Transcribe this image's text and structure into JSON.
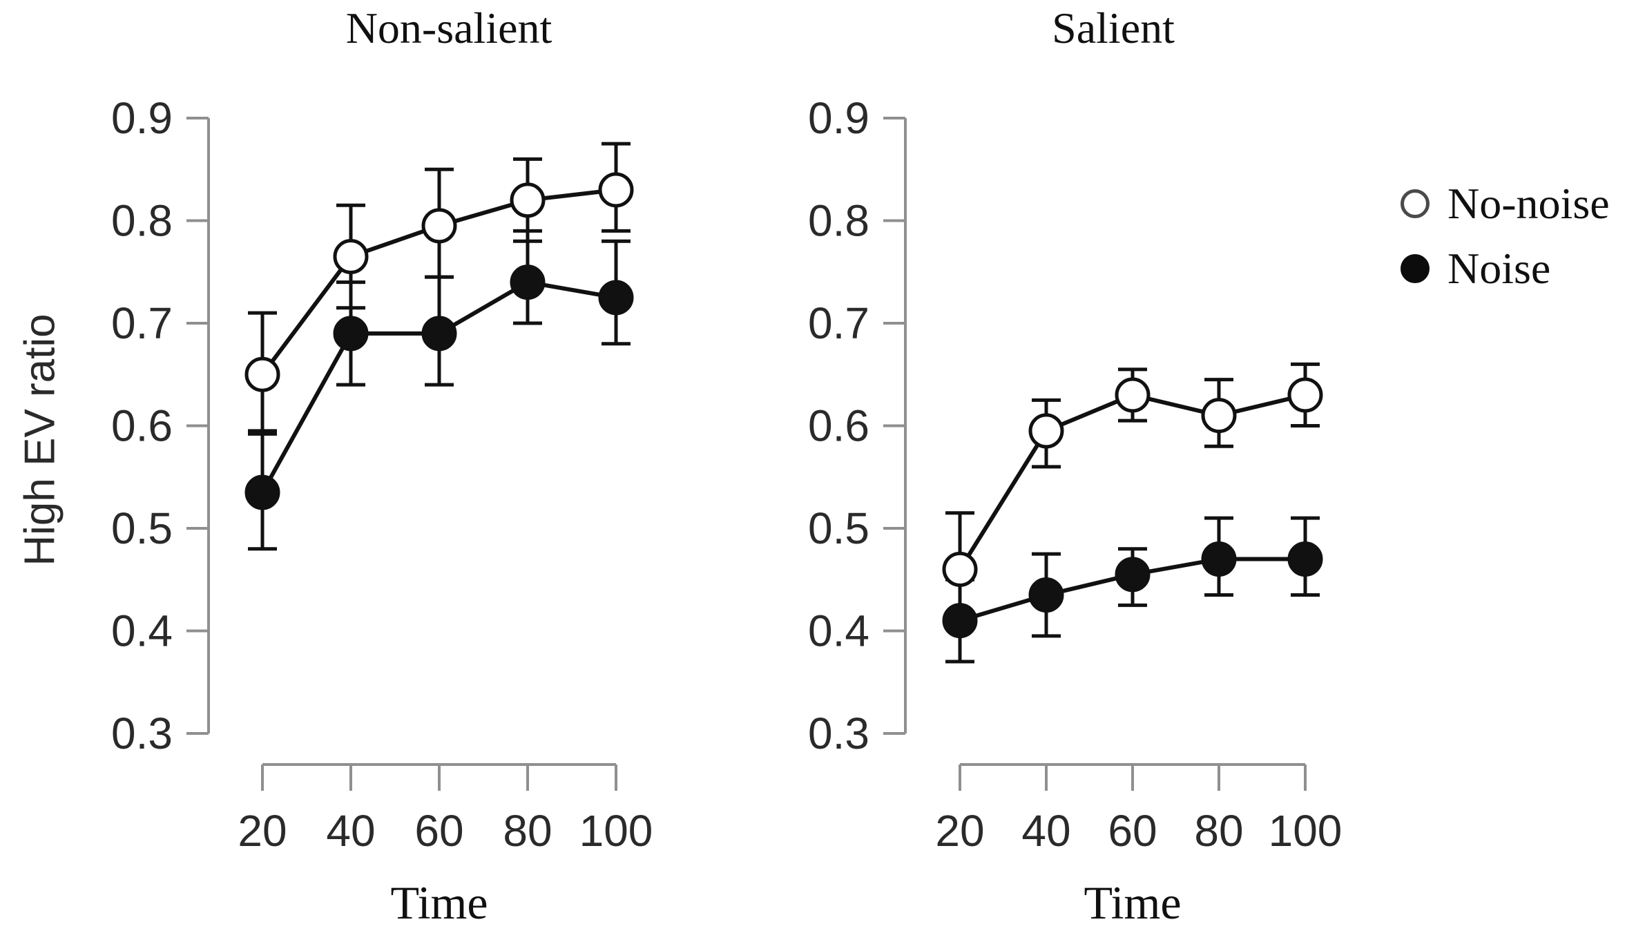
{
  "figure": {
    "y_axis_label": "High EV ratio",
    "x_axis_label": "Time",
    "background": "#ffffff",
    "colors": {
      "axis": "#8f8f8f",
      "data": "#111111",
      "tick_text": "#2a2a2a",
      "text": "#101010"
    }
  },
  "legend": {
    "position": "right",
    "items": [
      {
        "label": "No-noise",
        "marker": "open-circle"
      },
      {
        "label": "Noise",
        "marker": "filled-circle"
      }
    ]
  },
  "chart_data": [
    {
      "type": "line",
      "title": "Non-salient",
      "xlabel": "Time",
      "ylabel": "High EV ratio",
      "x": [
        20,
        40,
        60,
        80,
        100
      ],
      "xlim": [
        20,
        100
      ],
      "ylim": [
        0.3,
        0.9
      ],
      "yticks": [
        0.3,
        0.4,
        0.5,
        0.6,
        0.7,
        0.8,
        0.9
      ],
      "grid": false,
      "error_bars": true,
      "series": [
        {
          "name": "No-noise",
          "marker": "open-circle",
          "values": [
            0.65,
            0.765,
            0.795,
            0.82,
            0.83
          ],
          "err_lo": [
            0.595,
            0.715,
            0.745,
            0.78,
            0.79
          ],
          "err_hi": [
            0.71,
            0.815,
            0.85,
            0.86,
            0.875
          ]
        },
        {
          "name": "Noise",
          "marker": "filled-circle",
          "values": [
            0.535,
            0.69,
            0.69,
            0.74,
            0.725
          ],
          "err_lo": [
            0.48,
            0.64,
            0.64,
            0.7,
            0.68
          ],
          "err_hi": [
            0.592,
            0.74,
            0.745,
            0.79,
            0.78
          ]
        }
      ]
    },
    {
      "type": "line",
      "title": "Salient",
      "xlabel": "Time",
      "ylabel": "",
      "x": [
        20,
        40,
        60,
        80,
        100
      ],
      "xlim": [
        20,
        100
      ],
      "ylim": [
        0.3,
        0.9
      ],
      "yticks": [
        0.3,
        0.4,
        0.5,
        0.6,
        0.7,
        0.8,
        0.9
      ],
      "grid": false,
      "error_bars": true,
      "series": [
        {
          "name": "No-noise",
          "marker": "open-circle",
          "values": [
            0.46,
            0.595,
            0.63,
            0.61,
            0.63
          ],
          "err_lo": [
            0.41,
            0.56,
            0.605,
            0.58,
            0.6
          ],
          "err_hi": [
            0.515,
            0.625,
            0.655,
            0.645,
            0.66
          ]
        },
        {
          "name": "Noise",
          "marker": "filled-circle",
          "values": [
            0.41,
            0.435,
            0.455,
            0.47,
            0.47
          ],
          "err_lo": [
            0.37,
            0.395,
            0.425,
            0.435,
            0.435
          ],
          "err_hi": [
            0.45,
            0.475,
            0.48,
            0.51,
            0.51
          ]
        }
      ]
    }
  ]
}
